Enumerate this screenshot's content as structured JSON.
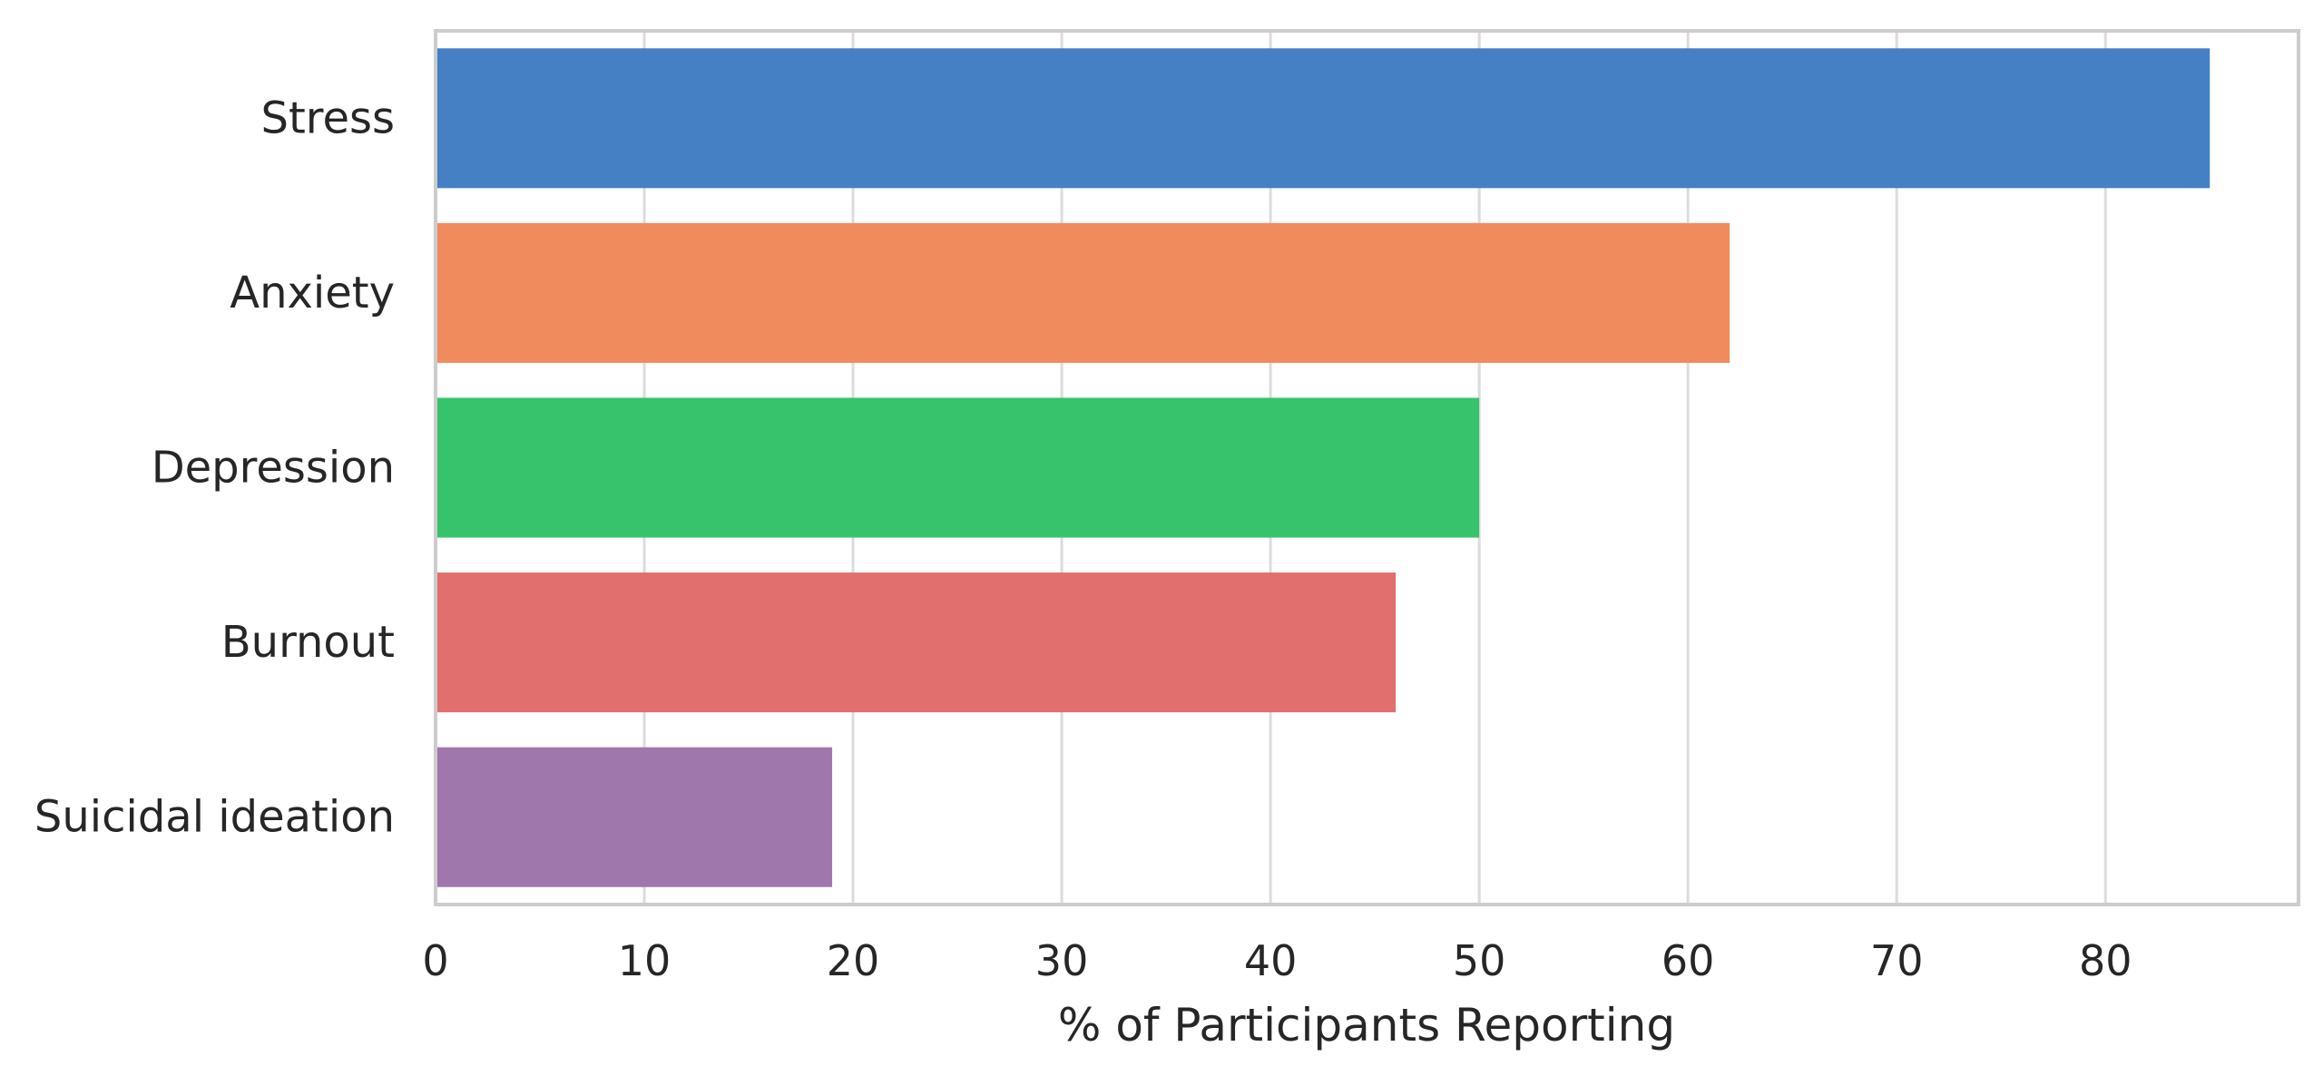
{
  "chart_data": {
    "type": "bar",
    "orientation": "horizontal",
    "categories": [
      "Stress",
      "Anxiety",
      "Depression",
      "Burnout",
      "Suicidal ideation"
    ],
    "values": [
      85,
      62,
      50,
      46,
      19
    ],
    "colors": [
      "#4480C3",
      "#F08B5E",
      "#37C36C",
      "#E06F6D",
      "#A077AD"
    ],
    "title": "",
    "xlabel": "% of Participants Reporting",
    "ylabel": "",
    "xlim": [
      0,
      89.25
    ],
    "xticks": [
      0,
      10,
      20,
      30,
      40,
      50,
      60,
      70,
      80
    ],
    "grid": "vertical",
    "legend": "none"
  }
}
